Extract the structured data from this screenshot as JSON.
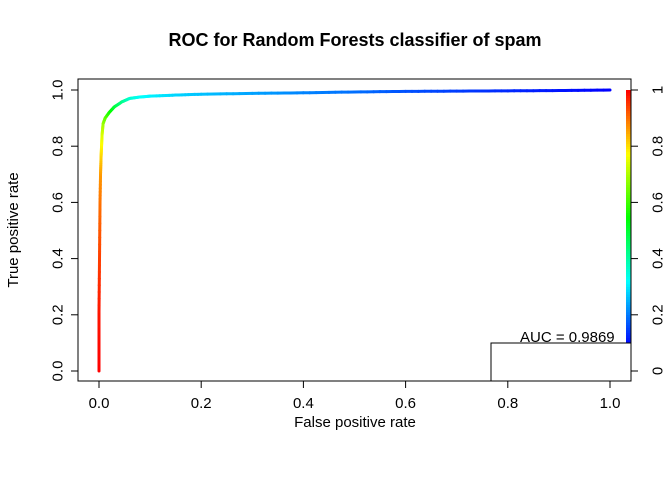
{
  "chart_data": {
    "type": "line",
    "title": "ROC for Random Forests classifier of spam",
    "xlabel": "False positive rate",
    "ylabel": "True positive rate",
    "xlim": [
      0,
      1
    ],
    "ylim": [
      0,
      1
    ],
    "x_ticks": [
      "0.0",
      "0.2",
      "0.4",
      "0.6",
      "0.8",
      "1.0"
    ],
    "y_ticks": [
      "0.0",
      "0.2",
      "0.4",
      "0.6",
      "0.8",
      "1.0"
    ],
    "colorbar_ticks": [
      "0",
      "0.2",
      "0.4",
      "0.6",
      "0.8",
      "1"
    ],
    "grid": false,
    "colormap": [
      "#0000ff",
      "#00ffff",
      "#00ff00",
      "#ffff00",
      "#ff0000"
    ],
    "series": [
      {
        "x": [
          0.0,
          0.0,
          0.001,
          0.002,
          0.003,
          0.004,
          0.005,
          0.006,
          0.008,
          0.012,
          0.02,
          0.03,
          0.045,
          0.06,
          0.08,
          0.1,
          0.15,
          0.2,
          0.3,
          0.4,
          0.5,
          0.6,
          0.7,
          0.8,
          0.9,
          1.0
        ],
        "y": [
          0.0,
          0.21,
          0.4,
          0.6,
          0.7,
          0.76,
          0.8,
          0.84,
          0.88,
          0.9,
          0.92,
          0.94,
          0.958,
          0.97,
          0.975,
          0.978,
          0.982,
          0.985,
          0.988,
          0.99,
          0.993,
          0.995,
          0.996,
          0.997,
          0.998,
          1.0
        ],
        "cutoff": [
          1.0,
          0.98,
          0.94,
          0.89,
          0.85,
          0.8,
          0.76,
          0.72,
          0.66,
          0.6,
          0.53,
          0.45,
          0.37,
          0.3,
          0.26,
          0.24,
          0.21,
          0.19,
          0.16,
          0.13,
          0.11,
          0.08,
          0.06,
          0.04,
          0.02,
          0.0
        ]
      }
    ],
    "annotation": {
      "label": "AUC = ",
      "value": "0.9869"
    }
  }
}
